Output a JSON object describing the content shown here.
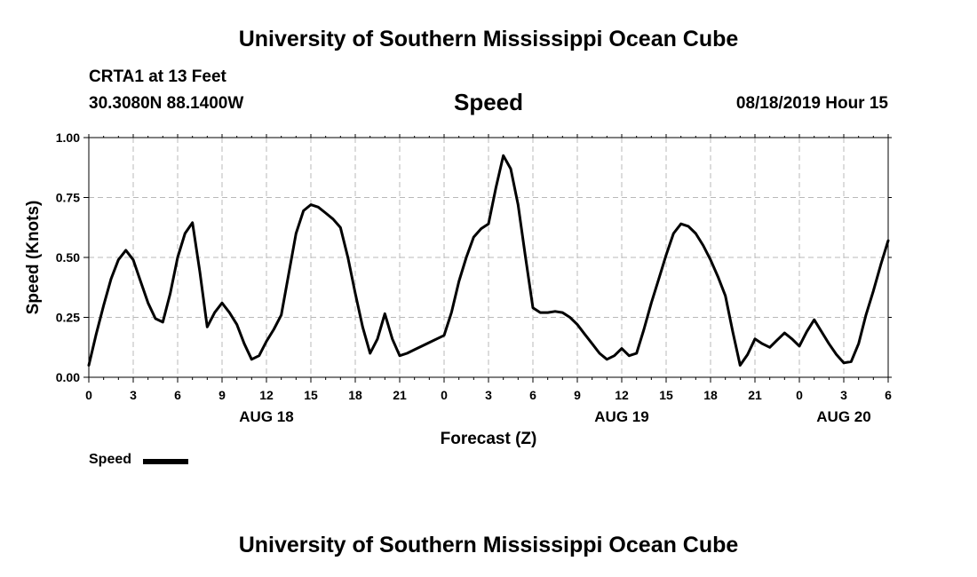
{
  "header": {
    "title_top": "University of Southern Mississippi Ocean Cube",
    "station_name": "CRTA1 at 13 Feet",
    "station_coords": "30.3080N 88.1400W",
    "timestamp": "08/18/2019 Hour 15"
  },
  "footer": {
    "title_bottom": "University of Southern Mississippi Ocean Cube"
  },
  "legend": {
    "label": "Speed",
    "color": "#000000"
  },
  "chart_data": {
    "type": "line",
    "title": "Speed",
    "xlabel": "Forecast (Z)",
    "ylabel": "Speed (Knots)",
    "ylim": [
      0,
      1
    ],
    "yticks": [
      0,
      0.25,
      0.5,
      0.75,
      1
    ],
    "ytick_labels": [
      "0.00",
      "0.25",
      "0.50",
      "0.75",
      "1.00"
    ],
    "xlim": [
      0,
      54
    ],
    "xtick_hours": [
      0,
      3,
      6,
      9,
      12,
      15,
      18,
      21,
      24,
      27,
      30,
      33,
      36,
      39,
      42,
      45,
      48,
      51,
      54
    ],
    "xtick_labels": [
      "0",
      "3",
      "6",
      "9",
      "12",
      "15",
      "18",
      "21",
      "0",
      "3",
      "6",
      "9",
      "12",
      "15",
      "18",
      "21",
      "0",
      "3",
      "6"
    ],
    "date_labels": [
      {
        "hour": 12,
        "text": "AUG 18"
      },
      {
        "hour": 36,
        "text": "AUG 19"
      },
      {
        "hour": 51,
        "text": "AUG 20"
      }
    ],
    "grid": true,
    "legend_position": "bottom-left",
    "series": [
      {
        "name": "Speed",
        "color": "#000000",
        "x": [
          0,
          0.5,
          1,
          1.5,
          2,
          2.5,
          3,
          3.5,
          4,
          4.5,
          5,
          5.5,
          6,
          6.5,
          7,
          7.5,
          8,
          8.5,
          9,
          9.5,
          10,
          10.5,
          11,
          11.5,
          12,
          12.5,
          13,
          13.5,
          14,
          14.5,
          15,
          15.5,
          16,
          16.5,
          17,
          17.5,
          18,
          18.5,
          19,
          19.5,
          20,
          20.5,
          21,
          21.5,
          22,
          22.5,
          23,
          23.5,
          24,
          24.5,
          25,
          25.5,
          26,
          26.5,
          27,
          27.5,
          28,
          28.5,
          29,
          29.5,
          30,
          30.5,
          31,
          31.5,
          32,
          32.5,
          33,
          33.5,
          34,
          34.5,
          35,
          35.5,
          36,
          36.5,
          37,
          37.5,
          38,
          38.5,
          39,
          39.5,
          40,
          40.5,
          41,
          41.5,
          42,
          42.5,
          43,
          43.5,
          44,
          44.5,
          45,
          45.5,
          46,
          46.5,
          47,
          47.5,
          48,
          48.5,
          49,
          49.5,
          50,
          50.5,
          51,
          51.5,
          52,
          52.5,
          53,
          53.5,
          54
        ],
        "values": [
          0.05,
          0.18,
          0.3,
          0.41,
          0.49,
          0.53,
          0.49,
          0.4,
          0.31,
          0.245,
          0.23,
          0.35,
          0.5,
          0.6,
          0.645,
          0.44,
          0.21,
          0.27,
          0.31,
          0.27,
          0.22,
          0.14,
          0.075,
          0.09,
          0.15,
          0.2,
          0.26,
          0.43,
          0.6,
          0.695,
          0.72,
          0.71,
          0.685,
          0.66,
          0.625,
          0.5,
          0.35,
          0.21,
          0.1,
          0.16,
          0.265,
          0.16,
          0.09,
          0.1,
          0.115,
          0.13,
          0.145,
          0.16,
          0.175,
          0.27,
          0.4,
          0.5,
          0.585,
          0.62,
          0.64,
          0.79,
          0.925,
          0.87,
          0.72,
          0.5,
          0.29,
          0.27,
          0.27,
          0.275,
          0.27,
          0.25,
          0.22,
          0.18,
          0.14,
          0.1,
          0.075,
          0.09,
          0.12,
          0.09,
          0.1,
          0.2,
          0.31,
          0.41,
          0.51,
          0.6,
          0.64,
          0.63,
          0.6,
          0.55,
          0.49,
          0.42,
          0.34,
          0.19,
          0.05,
          0.095,
          0.16,
          0.14,
          0.125,
          0.155,
          0.185,
          0.16,
          0.13,
          0.19,
          0.24,
          0.19,
          0.14,
          0.095,
          0.06,
          0.065,
          0.14,
          0.26,
          0.36,
          0.47,
          0.57
        ]
      }
    ]
  }
}
